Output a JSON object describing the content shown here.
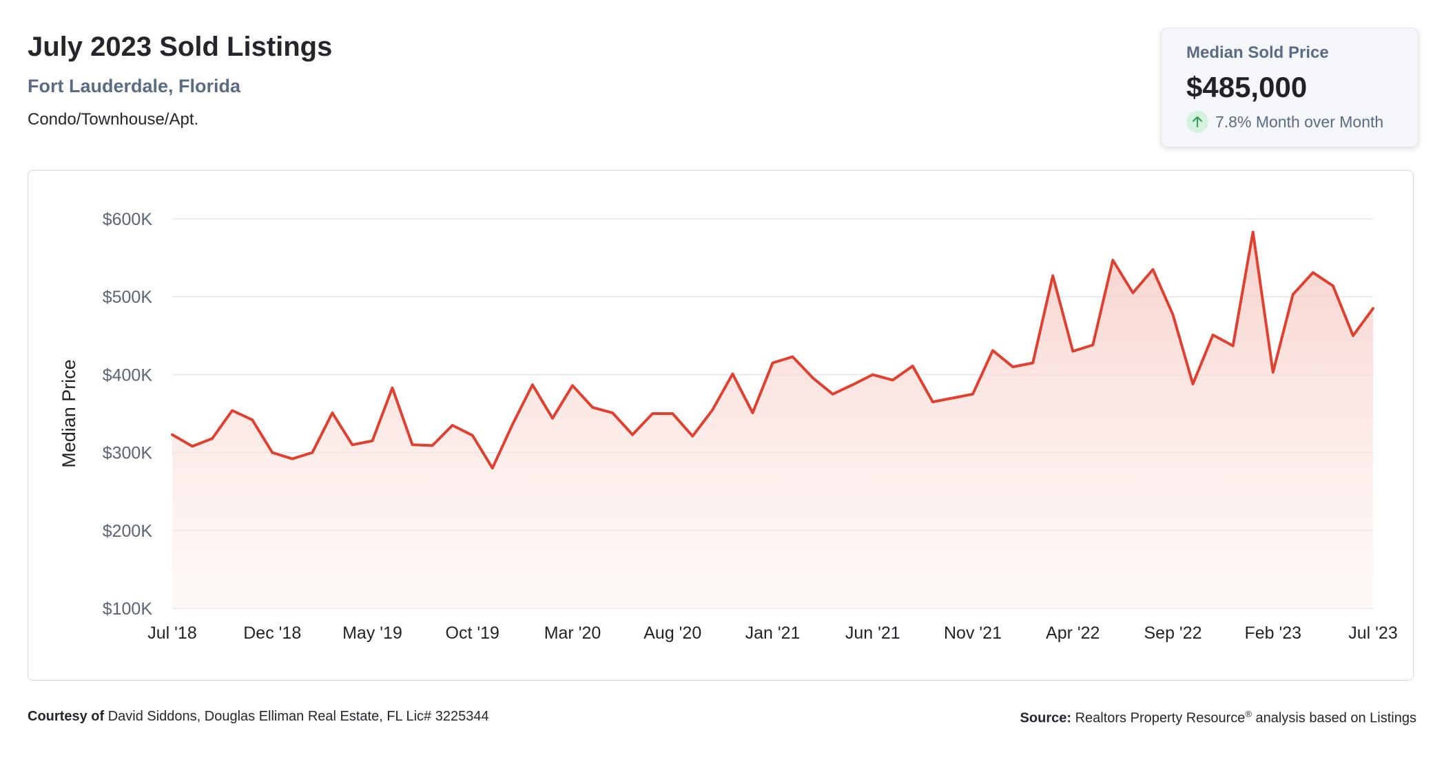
{
  "header": {
    "title": "July 2023 Sold Listings",
    "location": "Fort Lauderdale, Florida",
    "property_type": "Condo/Townhouse/Apt."
  },
  "summary_card": {
    "label": "Median Sold Price",
    "value": "$485,000",
    "change": "7.8% Month over Month",
    "direction": "up",
    "arrow_icon": "arrow-up-icon",
    "up_color": "#2e9e57"
  },
  "footer": {
    "courtesy_label": "Courtesy of",
    "courtesy_text": "David Siddons, Douglas Elliman Real Estate, FL Lic# 3225344",
    "source_label": "Source:",
    "source_text": "Realtors Property Resource",
    "source_mark": "®",
    "source_suffix": "analysis based on Listings"
  },
  "chart_data": {
    "type": "area",
    "ylabel": "Median Price",
    "ylim": [
      100000,
      600000
    ],
    "y_ticks": [
      100000,
      200000,
      300000,
      400000,
      500000,
      600000
    ],
    "y_tick_labels": [
      "$100K",
      "$200K",
      "$300K",
      "$400K",
      "$500K",
      "$600K"
    ],
    "x_tick_labels": [
      "Jul '18",
      "Dec '18",
      "May '19",
      "Oct '19",
      "Mar '20",
      "Aug '20",
      "Jan '21",
      "Jun '21",
      "Nov '21",
      "Apr '22",
      "Sep '22",
      "Feb '23",
      "Jul '23"
    ],
    "x_tick_every": 5,
    "grid": true,
    "line_color": "#e04030",
    "x": [
      "2018-07",
      "2018-08",
      "2018-09",
      "2018-10",
      "2018-11",
      "2018-12",
      "2019-01",
      "2019-02",
      "2019-03",
      "2019-04",
      "2019-05",
      "2019-06",
      "2019-07",
      "2019-08",
      "2019-09",
      "2019-10",
      "2019-11",
      "2019-12",
      "2020-01",
      "2020-02",
      "2020-03",
      "2020-04",
      "2020-05",
      "2020-06",
      "2020-07",
      "2020-08",
      "2020-09",
      "2020-10",
      "2020-11",
      "2020-12",
      "2021-01",
      "2021-02",
      "2021-03",
      "2021-04",
      "2021-05",
      "2021-06",
      "2021-07",
      "2021-08",
      "2021-09",
      "2021-10",
      "2021-11",
      "2021-12",
      "2022-01",
      "2022-02",
      "2022-03",
      "2022-04",
      "2022-05",
      "2022-06",
      "2022-07",
      "2022-08",
      "2022-09",
      "2022-10",
      "2022-11",
      "2022-12",
      "2023-01",
      "2023-02",
      "2023-03",
      "2023-04",
      "2023-05",
      "2023-06",
      "2023-07"
    ],
    "series": [
      {
        "values": [
          323000,
          308000,
          318000,
          354000,
          342000,
          300000,
          292000,
          300000,
          351000,
          310000,
          315000,
          383000,
          310000,
          309000,
          335000,
          322000,
          280000,
          336000,
          387000,
          344000,
          386000,
          358000,
          351000,
          323000,
          350000,
          350000,
          321000,
          355000,
          401000,
          351000,
          415000,
          423000,
          396000,
          375000,
          387000,
          400000,
          393000,
          411000,
          365000,
          370000,
          375000,
          431000,
          410000,
          415000,
          527000,
          430000,
          438000,
          547000,
          505000,
          535000,
          477000,
          388000,
          451000,
          437000,
          583000,
          403000,
          503000,
          531000,
          514000,
          450000,
          485000
        ]
      }
    ]
  }
}
